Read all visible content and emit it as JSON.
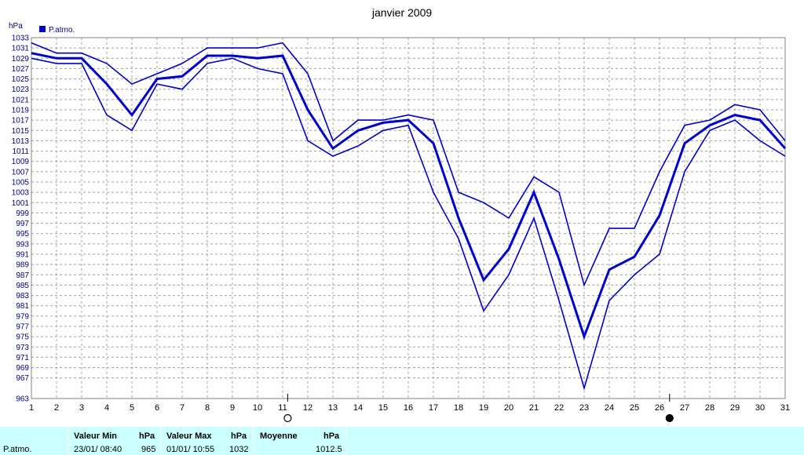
{
  "chart_data": {
    "type": "line",
    "title": "janvier 2009",
    "ylabel": "hPa",
    "ylim": [
      963,
      1033
    ],
    "yticks": [
      963,
      967,
      969,
      971,
      973,
      975,
      977,
      979,
      981,
      983,
      985,
      987,
      989,
      991,
      993,
      995,
      997,
      999,
      1001,
      1003,
      1005,
      1007,
      1009,
      1011,
      1013,
      1015,
      1017,
      1019,
      1021,
      1023,
      1025,
      1027,
      1029,
      1031,
      1033
    ],
    "x": [
      1,
      2,
      3,
      4,
      5,
      6,
      7,
      8,
      9,
      10,
      11,
      12,
      13,
      14,
      15,
      16,
      17,
      18,
      19,
      20,
      21,
      22,
      23,
      24,
      25,
      26,
      27,
      28,
      29,
      30,
      31
    ],
    "grid": true,
    "legend": [
      {
        "name": "P.atmo.",
        "color": "#0000cc"
      }
    ],
    "series": [
      {
        "name": "P.atmo.",
        "values": [
          1030,
          1029,
          1029,
          1024,
          1018,
          1025,
          1025.5,
          1029.5,
          1029.5,
          1029,
          1029.5,
          1019,
          1011.5,
          1015,
          1016.5,
          1017,
          1012.5,
          998,
          986,
          992,
          1003,
          990,
          975,
          988,
          990.5,
          998.5,
          1012.5,
          1016,
          1018,
          1017,
          1011.5
        ]
      },
      {
        "values": [
          1032,
          1030,
          1030,
          1028,
          1024,
          1026,
          1028,
          1031,
          1031,
          1031,
          1032,
          1026,
          1013,
          1017,
          1017,
          1018,
          1017,
          1003,
          1001,
          998,
          1006,
          1003,
          985,
          996,
          996,
          1007,
          1016,
          1017,
          1020,
          1019,
          1013
        ]
      },
      {
        "values": [
          1029,
          1028,
          1028,
          1018,
          1015,
          1024,
          1023,
          1028,
          1029,
          1027,
          1026,
          1013,
          1010,
          1012,
          1015,
          1016,
          1003,
          994,
          980,
          987,
          998,
          982,
          965,
          982,
          987,
          991,
          1007,
          1015,
          1017,
          1013,
          1010
        ]
      }
    ],
    "moon_phases": [
      {
        "x": 11.2,
        "phase": "full"
      },
      {
        "x": 26.4,
        "phase": "new"
      }
    ]
  },
  "stats": {
    "row_label": "P.atmo.",
    "min_header": "Valeur Min",
    "min_unit": "hPa",
    "min_date": "23/01/  08:40",
    "min_value": "965",
    "max_header": "Valeur Max",
    "max_unit": "hPa",
    "max_date": "01/01/  10:55",
    "max_value": "1032",
    "avg_header": "Moyenne",
    "avg_unit": "hPa",
    "avg_value": "1012.5"
  }
}
